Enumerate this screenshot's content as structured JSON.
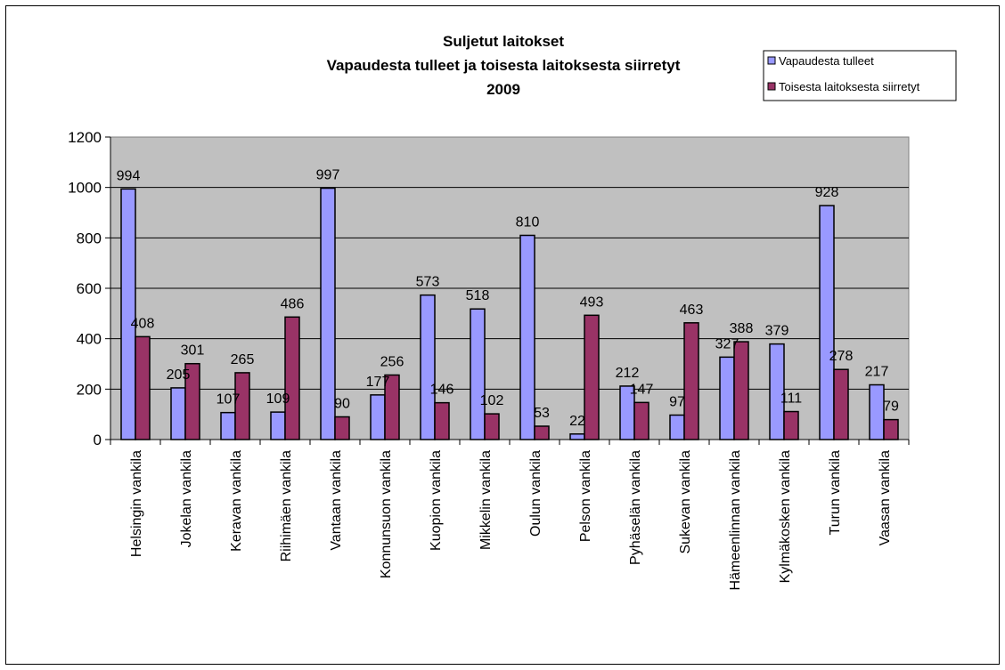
{
  "chart_data": {
    "type": "bar",
    "title_lines": [
      "Suljetut laitokset",
      "Vapaudesta tulleet ja toisesta laitoksesta siirretyt",
      "2009"
    ],
    "categories": [
      "Helsingin vankila",
      "Jokelan vankila",
      "Keravan vankila",
      "Riihimäen vankila",
      "Vantaan vankila",
      "Konnunsuon vankila",
      "Kuopion vankila",
      "Mikkelin vankila",
      "Oulun vankila",
      "Pelson vankila",
      "Pyhäselän vankila",
      "Sukevan vankila",
      "Hämeenlinnan vankila",
      "Kylmäkosken vankila",
      "Turun vankila",
      "Vaasan vankila"
    ],
    "series": [
      {
        "name": "Vapaudesta tulleet",
        "color": "#9999ff",
        "values": [
          994,
          205,
          107,
          109,
          997,
          177,
          573,
          518,
          810,
          22,
          212,
          97,
          327,
          379,
          928,
          217
        ]
      },
      {
        "name": "Toisesta laitoksesta siirretyt",
        "color": "#993366",
        "values": [
          408,
          301,
          265,
          486,
          90,
          256,
          146,
          102,
          53,
          493,
          147,
          463,
          388,
          111,
          278,
          79
        ]
      }
    ],
    "ylim": [
      0,
      1200
    ],
    "yticks": [
      0,
      200,
      400,
      600,
      800,
      1000,
      1200
    ],
    "grid": true,
    "plot_background": "#c0c0c0",
    "legend_position": "top-right"
  }
}
